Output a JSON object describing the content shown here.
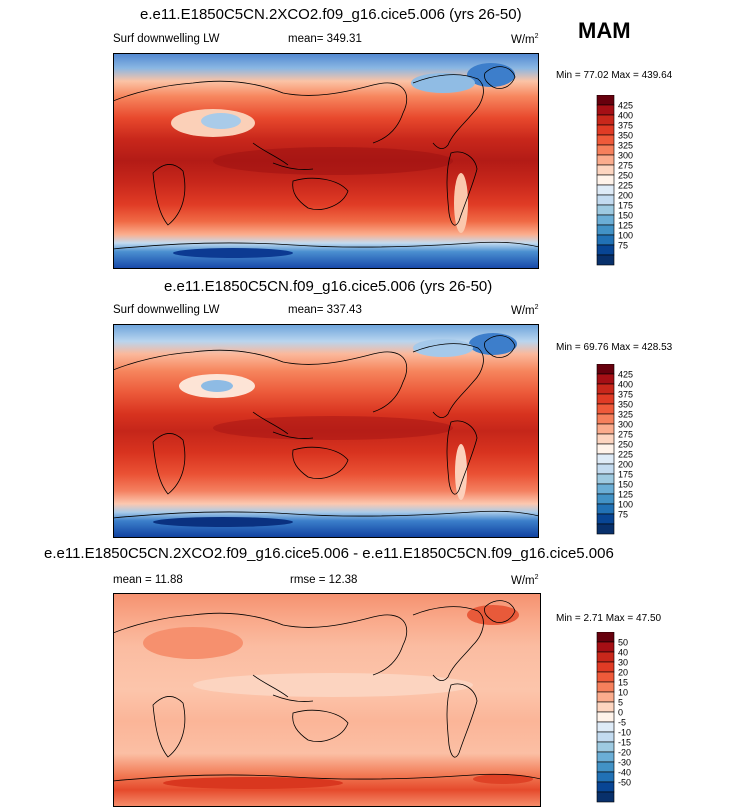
{
  "season": "MAM",
  "panels": [
    {
      "title": "e.e11.E1850C5CN.2XCO2.f09_g16.cice5.006 (yrs 26-50)",
      "left_label": "Surf downwelling LW",
      "center_label": "mean= 349.31",
      "units_base": "W/m",
      "units_exp": "2",
      "minmax": "Min = 77.02 Max = 439.64",
      "colorbar_colors": [
        "#67000d",
        "#a50f15",
        "#c8271b",
        "#e03b25",
        "#ef5a3a",
        "#f6805c",
        "#fbac8d",
        "#fdd5c0",
        "#fff3ea",
        "#deebf7",
        "#c3dbf0",
        "#9ecae1",
        "#6baed6",
        "#4292c6",
        "#2171b5",
        "#084594",
        "#08306b"
      ],
      "colorbar_labels": [
        "425",
        "400",
        "375",
        "350",
        "325",
        "300",
        "275",
        "250",
        "225",
        "200",
        "175",
        "150",
        "125",
        "100",
        "75"
      ]
    },
    {
      "title": "e.e11.E1850C5CN.f09_g16.cice5.006 (yrs 26-50)",
      "left_label": "Surf downwelling LW",
      "center_label": "mean= 337.43",
      "units_base": "W/m",
      "units_exp": "2",
      "minmax": "Min = 69.76 Max = 428.53",
      "colorbar_colors": [
        "#67000d",
        "#a50f15",
        "#c8271b",
        "#e03b25",
        "#ef5a3a",
        "#f6805c",
        "#fbac8d",
        "#fdd5c0",
        "#fff3ea",
        "#deebf7",
        "#c3dbf0",
        "#9ecae1",
        "#6baed6",
        "#4292c6",
        "#2171b5",
        "#084594",
        "#08306b"
      ],
      "colorbar_labels": [
        "425",
        "400",
        "375",
        "350",
        "325",
        "300",
        "275",
        "250",
        "225",
        "200",
        "175",
        "150",
        "125",
        "100",
        "75"
      ]
    },
    {
      "title": "e.e11.E1850C5CN.2XCO2.f09_g16.cice5.006 - e.e11.E1850C5CN.f09_g16.cice5.006",
      "left_label": "mean = 11.88",
      "center_label": "rmse = 12.38",
      "units_base": "W/m",
      "units_exp": "2",
      "minmax": "Min = 2.71 Max = 47.50",
      "colorbar_colors": [
        "#67000d",
        "#a50f15",
        "#c8271b",
        "#e03b25",
        "#ef5a3a",
        "#f6805c",
        "#fbac8d",
        "#fdd5c0",
        "#fff3ea",
        "#deebf7",
        "#c3dbf0",
        "#9ecae1",
        "#6baed6",
        "#4292c6",
        "#2171b5",
        "#084594",
        "#08306b"
      ],
      "colorbar_labels": [
        "50",
        "40",
        "30",
        "20",
        "15",
        "10",
        "5",
        "0",
        "-5",
        "-10",
        "-15",
        "-20",
        "-30",
        "-40",
        "-50"
      ]
    }
  ]
}
